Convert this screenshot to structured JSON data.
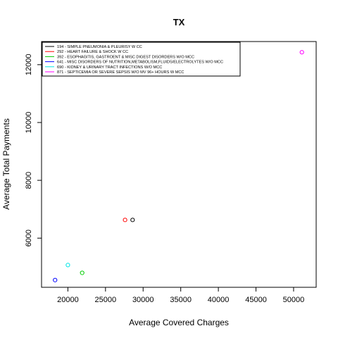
{
  "chart_data": {
    "type": "scatter",
    "title": "TX",
    "xlabel": "Average Covered Charges",
    "ylabel": "Average Total Payments",
    "xlim": [
      16500,
      53000
    ],
    "ylim": [
      4300,
      12800
    ],
    "xticks": [
      20000,
      25000,
      30000,
      35000,
      40000,
      45000,
      50000
    ],
    "yticks": [
      6000,
      8000,
      10000,
      12000
    ],
    "xtick_labels": [
      "20000",
      "25000",
      "30000",
      "35000",
      "40000",
      "45000",
      "50000"
    ],
    "ytick_labels": [
      "6000",
      "8000",
      "10000",
      "12000"
    ],
    "grid": false,
    "legend_position": "top-left",
    "series": [
      {
        "name": "194 - SIMPLE PNEUMONIA & PLEURISY W CC",
        "color": "#000000",
        "x": 28600,
        "y": 6630
      },
      {
        "name": "292 - HEART FAILURE & SHOCK W CC",
        "color": "#ff0000",
        "x": 27600,
        "y": 6630
      },
      {
        "name": "392 - ESOPHAGITIS, GASTROENT & MISC DIGEST DISORDERS W/O MCC",
        "color": "#00cd00",
        "x": 21900,
        "y": 4800
      },
      {
        "name": "641 - MISC DISORDERS OF NUTRITION,METABOLISM,FLUIDS/ELECTROLYTES W/O MCC",
        "color": "#0000ff",
        "x": 18300,
        "y": 4550
      },
      {
        "name": "690 - KIDNEY & URINARY TRACT INFECTIONS W/O MCC",
        "color": "#00e5e5",
        "x": 20000,
        "y": 5070
      },
      {
        "name": "871 - SEPTICEMIA OR SEVERE SEPSIS W/O MV 96+ HOURS W MCC",
        "color": "#ff00ff",
        "x": 51100,
        "y": 12430
      }
    ]
  }
}
